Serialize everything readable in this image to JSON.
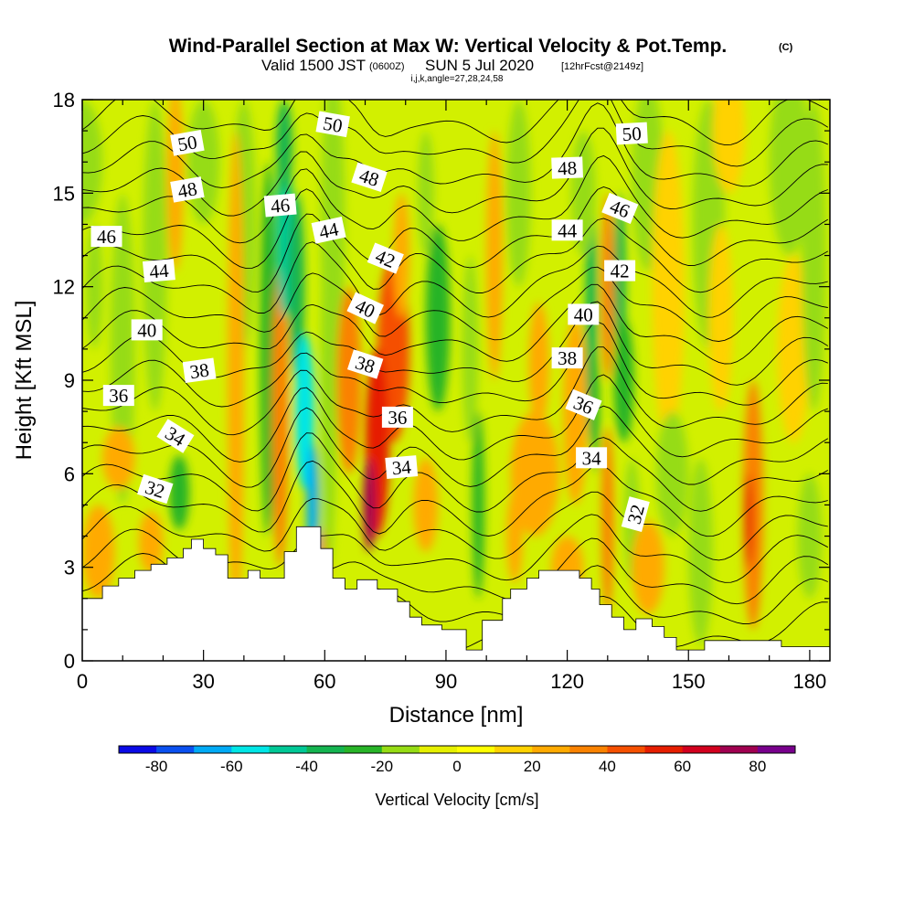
{
  "header": {
    "title": "Wind-Parallel Section at Max W: Vertical Velocity & Pot.Temp.",
    "copyright": "(C)",
    "valid_prefix": "Valid 1500 JST",
    "valid_utc": "(0600Z)",
    "valid_date": "SUN 5 Jul 2020",
    "forecast": "[12hrFcst@2149z]",
    "params": "i,j,k,angle=27,28,24,58"
  },
  "chart_data": {
    "type": "contour",
    "xlabel": "Distance [nm]",
    "ylabel": "Height [Kft MSL]",
    "xlim": [
      0,
      185
    ],
    "ylim": [
      0,
      18
    ],
    "xticks": [
      0,
      30,
      60,
      90,
      120,
      150,
      180
    ],
    "yticks": [
      0,
      3,
      6,
      9,
      12,
      15,
      18
    ],
    "colorbar": {
      "title": "Vertical Velocity [cm/s]",
      "tick_values": [
        -80,
        -60,
        -40,
        -20,
        0,
        20,
        40,
        60,
        80
      ],
      "levels": [
        -90,
        -80,
        -70,
        -60,
        -50,
        -40,
        -30,
        -20,
        -10,
        0,
        10,
        20,
        30,
        40,
        50,
        60,
        70,
        80,
        90
      ],
      "colors": [
        "#0a0ae6",
        "#0a50f0",
        "#00aaf5",
        "#00e6e6",
        "#00c896",
        "#14b450",
        "#28b428",
        "#96dc14",
        "#e6f000",
        "#ffff00",
        "#ffd200",
        "#ffaa00",
        "#fa8200",
        "#f55000",
        "#e61e00",
        "#d2001e",
        "#a00050",
        "#78008c"
      ]
    },
    "terrain_kft": [
      [
        0,
        2
      ],
      [
        3,
        2
      ],
      [
        5,
        2.4
      ],
      [
        7,
        2.4
      ],
      [
        9,
        2.65
      ],
      [
        11,
        2.65
      ],
      [
        13,
        2.9
      ],
      [
        15,
        2.9
      ],
      [
        17,
        3.1
      ],
      [
        19,
        3.1
      ],
      [
        21,
        3.3
      ],
      [
        23,
        3.3
      ],
      [
        25,
        3.6
      ],
      [
        27,
        3.9
      ],
      [
        29,
        3.9
      ],
      [
        30,
        3.6
      ],
      [
        32,
        3.6
      ],
      [
        33,
        3.4
      ],
      [
        35,
        3.4
      ],
      [
        36,
        2.65
      ],
      [
        40,
        2.65
      ],
      [
        41,
        2.9
      ],
      [
        43,
        2.9
      ],
      [
        44,
        2.65
      ],
      [
        49,
        2.65
      ],
      [
        50,
        3.5
      ],
      [
        52,
        3.5
      ],
      [
        53,
        4.3
      ],
      [
        58,
        4.3
      ],
      [
        59,
        3.6
      ],
      [
        61,
        3.6
      ],
      [
        62,
        2.65
      ],
      [
        64,
        2.65
      ],
      [
        65,
        2.3
      ],
      [
        67,
        2.3
      ],
      [
        68,
        2.6
      ],
      [
        72,
        2.6
      ],
      [
        73,
        2.3
      ],
      [
        77,
        2.3
      ],
      [
        78,
        1.9
      ],
      [
        80,
        1.9
      ],
      [
        81,
        1.4
      ],
      [
        83,
        1.4
      ],
      [
        84,
        1.15
      ],
      [
        88,
        1.15
      ],
      [
        89,
        1.0
      ],
      [
        94,
        1.0
      ],
      [
        95,
        0.35
      ],
      [
        98,
        0.35
      ],
      [
        99,
        1.3
      ],
      [
        103,
        1.3
      ],
      [
        104,
        2.0
      ],
      [
        105,
        2.0
      ],
      [
        106,
        2.3
      ],
      [
        109,
        2.3
      ],
      [
        110,
        2.65
      ],
      [
        112,
        2.65
      ],
      [
        113,
        2.9
      ],
      [
        121,
        2.9
      ],
      [
        123,
        2.65
      ],
      [
        125,
        2.65
      ],
      [
        126,
        2.3
      ],
      [
        127,
        2.3
      ],
      [
        128,
        1.8
      ],
      [
        130,
        1.8
      ],
      [
        131,
        1.4
      ],
      [
        133,
        1.4
      ],
      [
        134,
        1.0
      ],
      [
        136,
        1.0
      ],
      [
        137,
        1.35
      ],
      [
        140,
        1.35
      ],
      [
        141,
        1.1
      ],
      [
        143,
        1.1
      ],
      [
        144,
        0.75
      ],
      [
        146,
        0.75
      ],
      [
        147,
        0.35
      ],
      [
        153,
        0.35
      ],
      [
        154,
        0.65
      ],
      [
        172,
        0.65
      ],
      [
        173,
        0.45
      ],
      [
        185,
        0.45
      ]
    ],
    "velocity_cells": [
      {
        "x": 3,
        "y": 12,
        "rx": 2,
        "ry": 2,
        "w": -20
      },
      {
        "x": 0,
        "y": 16,
        "rx": 5,
        "ry": 2,
        "w": -15
      },
      {
        "x": 10,
        "y": 10,
        "rx": 3,
        "ry": 5,
        "w": -15
      },
      {
        "x": 18,
        "y": 13,
        "rx": 3,
        "ry": 5,
        "w": -15
      },
      {
        "x": 30,
        "y": 16,
        "rx": 4,
        "ry": 2,
        "w": -15
      },
      {
        "x": 40,
        "y": 14,
        "rx": 3,
        "ry": 4,
        "w": -15
      },
      {
        "x": 9,
        "y": 6.5,
        "rx": 4,
        "ry": 1,
        "w": 20
      },
      {
        "x": 4,
        "y": 3.5,
        "rx": 4,
        "ry": 1.5,
        "w": 25
      },
      {
        "x": 17,
        "y": 3.8,
        "rx": 3,
        "ry": 1,
        "w": 20
      },
      {
        "x": 24,
        "y": 5.4,
        "rx": 2.5,
        "ry": 1.2,
        "w": -25
      },
      {
        "x": 23,
        "y": 15.5,
        "rx": 2,
        "ry": 3,
        "w": 25
      },
      {
        "x": 38,
        "y": 9,
        "rx": 2,
        "ry": 8,
        "w": 25
      },
      {
        "x": 46,
        "y": 10,
        "rx": 2,
        "ry": 6,
        "w": -25
      },
      {
        "x": 49,
        "y": 8,
        "rx": 2,
        "ry": 5,
        "w": 30
      },
      {
        "x": 50,
        "y": 14,
        "rx": 2,
        "ry": 3,
        "w": -45
      },
      {
        "x": 50,
        "y": 16.5,
        "rx": 2,
        "ry": 1.5,
        "w": -35
      },
      {
        "x": 53,
        "y": 12,
        "rx": 2,
        "ry": 3,
        "w": -40
      },
      {
        "x": 55,
        "y": 8,
        "rx": 2.5,
        "ry": 2.5,
        "w": -55
      },
      {
        "x": 57,
        "y": 5,
        "rx": 1.5,
        "ry": 2,
        "w": -65
      },
      {
        "x": 60,
        "y": 3.5,
        "rx": 1.5,
        "ry": 0.8,
        "w": 35
      },
      {
        "x": 61,
        "y": 9,
        "rx": 2,
        "ry": 6,
        "w": -20
      },
      {
        "x": 62,
        "y": 14,
        "rx": 3,
        "ry": 5,
        "w": -15
      },
      {
        "x": 66,
        "y": 9,
        "rx": 3,
        "ry": 3,
        "w": 30
      },
      {
        "x": 77,
        "y": 10,
        "rx": 4,
        "ry": 3,
        "w": 45
      },
      {
        "x": 73,
        "y": 7,
        "rx": 3,
        "ry": 3,
        "w": 55
      },
      {
        "x": 71,
        "y": 5,
        "rx": 1.5,
        "ry": 1.5,
        "w": 75
      },
      {
        "x": 79,
        "y": 13,
        "rx": 2,
        "ry": 2,
        "w": 25
      },
      {
        "x": 85,
        "y": 5,
        "rx": 3,
        "ry": 1.5,
        "w": 25
      },
      {
        "x": 88,
        "y": 11,
        "rx": 3,
        "ry": 3,
        "w": -25
      },
      {
        "x": 85,
        "y": 15,
        "rx": 2,
        "ry": 2,
        "w": -15
      },
      {
        "x": 96,
        "y": 10,
        "rx": 2,
        "ry": 3,
        "w": -15
      },
      {
        "x": 98,
        "y": 5,
        "rx": 1.5,
        "ry": 3,
        "w": -25
      },
      {
        "x": 102,
        "y": 13,
        "rx": 2,
        "ry": 4,
        "w": 25
      },
      {
        "x": 108,
        "y": 15,
        "rx": 3,
        "ry": 3,
        "w": -15
      },
      {
        "x": 107,
        "y": 4,
        "rx": 2,
        "ry": 1.5,
        "w": 25
      },
      {
        "x": 112,
        "y": 6,
        "rx": 6,
        "ry": 2,
        "w": 20
      },
      {
        "x": 113,
        "y": 9.5,
        "rx": 2.5,
        "ry": 2,
        "w": 25
      },
      {
        "x": 122,
        "y": 8,
        "rx": 3,
        "ry": 3,
        "w": 25
      },
      {
        "x": 120,
        "y": 3,
        "rx": 4,
        "ry": 1,
        "w": 25
      },
      {
        "x": 126,
        "y": 11,
        "rx": 1.5,
        "ry": 4,
        "w": -35
      },
      {
        "x": 127,
        "y": 8,
        "rx": 1,
        "ry": 2,
        "w": -25
      },
      {
        "x": 124,
        "y": 15,
        "rx": 3,
        "ry": 2,
        "w": -15
      },
      {
        "x": 130,
        "y": 12,
        "rx": 1.5,
        "ry": 3,
        "w": 35
      },
      {
        "x": 130,
        "y": 4.5,
        "rx": 1.5,
        "ry": 3,
        "w": 35
      },
      {
        "x": 133,
        "y": 12,
        "rx": 1.5,
        "ry": 3,
        "w": -35
      },
      {
        "x": 134,
        "y": 9,
        "rx": 2.5,
        "ry": 2,
        "w": -25
      },
      {
        "x": 136,
        "y": 4.5,
        "rx": 2,
        "ry": 2,
        "w": -15
      },
      {
        "x": 140,
        "y": 3,
        "rx": 4,
        "ry": 1.5,
        "w": 25
      },
      {
        "x": 140,
        "y": 15.5,
        "rx": 4,
        "ry": 3,
        "w": -15
      },
      {
        "x": 145,
        "y": 12,
        "rx": 4,
        "ry": 5,
        "w": 12
      },
      {
        "x": 146,
        "y": 6,
        "rx": 4,
        "ry": 2,
        "w": -20
      },
      {
        "x": 153,
        "y": 3.5,
        "rx": 3,
        "ry": 3,
        "w": -15
      },
      {
        "x": 155,
        "y": 14,
        "rx": 4,
        "ry": 4,
        "w": -15
      },
      {
        "x": 160,
        "y": 17,
        "rx": 4,
        "ry": 2,
        "w": 15
      },
      {
        "x": 166,
        "y": 5,
        "rx": 2.5,
        "ry": 4,
        "w": 35
      },
      {
        "x": 165,
        "y": 4.5,
        "rx": 1,
        "ry": 1.5,
        "w": 55
      },
      {
        "x": 158,
        "y": 11,
        "rx": 3,
        "ry": 3,
        "w": 15
      },
      {
        "x": 176,
        "y": 10,
        "rx": 4,
        "ry": 3,
        "w": 12
      },
      {
        "x": 181,
        "y": 13,
        "rx": 3,
        "ry": 5,
        "w": -15
      },
      {
        "x": 180,
        "y": 4,
        "rx": 3,
        "ry": 2,
        "w": -15
      },
      {
        "x": 175,
        "y": 16,
        "rx": 5,
        "ry": 3,
        "w": -12
      }
    ],
    "theta_levels": [
      31,
      32,
      33,
      34,
      35,
      36,
      37,
      38,
      39,
      40,
      41,
      42,
      43,
      44,
      45,
      46,
      47,
      48,
      49,
      50,
      51,
      52
    ],
    "theta_labels": [
      {
        "text": "50",
        "x": 26,
        "y": 16.6,
        "angle": -10
      },
      {
        "text": "50",
        "x": 62,
        "y": 17.2,
        "angle": 10
      },
      {
        "text": "50",
        "x": 136,
        "y": 16.9,
        "angle": -3
      },
      {
        "text": "48",
        "x": 26,
        "y": 15.1,
        "angle": -10
      },
      {
        "text": "48",
        "x": 71,
        "y": 15.5,
        "angle": 18
      },
      {
        "text": "48",
        "x": 120,
        "y": 15.8,
        "angle": -2
      },
      {
        "text": "46",
        "x": 6,
        "y": 13.6,
        "angle": 0
      },
      {
        "text": "46",
        "x": 49,
        "y": 14.6,
        "angle": -5
      },
      {
        "text": "46",
        "x": 133,
        "y": 14.5,
        "angle": 22
      },
      {
        "text": "44",
        "x": 19,
        "y": 12.5,
        "angle": -5
      },
      {
        "text": "44",
        "x": 61,
        "y": 13.8,
        "angle": -12
      },
      {
        "text": "44",
        "x": 120,
        "y": 13.8,
        "angle": 0
      },
      {
        "text": "42",
        "x": 75,
        "y": 12.9,
        "angle": 22
      },
      {
        "text": "42",
        "x": 133,
        "y": 12.5,
        "angle": 0
      },
      {
        "text": "40",
        "x": 16,
        "y": 10.6,
        "angle": 0
      },
      {
        "text": "40",
        "x": 70,
        "y": 11.3,
        "angle": 25
      },
      {
        "text": "40",
        "x": 124,
        "y": 11.1,
        "angle": 0
      },
      {
        "text": "38",
        "x": 29,
        "y": 9.3,
        "angle": -8
      },
      {
        "text": "38",
        "x": 70,
        "y": 9.5,
        "angle": 18
      },
      {
        "text": "38",
        "x": 120,
        "y": 9.7,
        "angle": 0
      },
      {
        "text": "36",
        "x": 9,
        "y": 8.5,
        "angle": 0
      },
      {
        "text": "36",
        "x": 78,
        "y": 7.8,
        "angle": 0
      },
      {
        "text": "36",
        "x": 124,
        "y": 8.2,
        "angle": 22
      },
      {
        "text": "34",
        "x": 23,
        "y": 7.2,
        "angle": 32
      },
      {
        "text": "34",
        "x": 79,
        "y": 6.2,
        "angle": -5
      },
      {
        "text": "34",
        "x": 126,
        "y": 6.5,
        "angle": 0
      },
      {
        "text": "32",
        "x": 18,
        "y": 5.5,
        "angle": 18
      },
      {
        "text": "32",
        "x": 137,
        "y": 4.7,
        "angle": -75
      }
    ]
  }
}
